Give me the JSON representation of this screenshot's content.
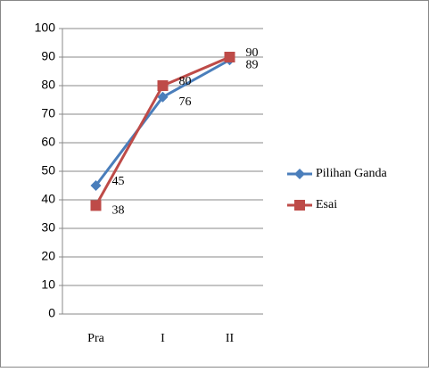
{
  "chart_data": {
    "type": "line",
    "categories": [
      "Pra",
      "I",
      "II"
    ],
    "series": [
      {
        "name": "Pilihan Ganda",
        "color": "#4a7ebb",
        "marker": "diamond",
        "values": [
          45,
          76,
          89
        ]
      },
      {
        "name": "Esai",
        "color": "#be4b48",
        "marker": "square",
        "values": [
          38,
          80,
          90
        ]
      }
    ],
    "ylim": [
      0,
      100
    ],
    "yticks": [
      0,
      10,
      20,
      30,
      40,
      50,
      60,
      70,
      80,
      90,
      100
    ],
    "grid": true,
    "legend": "right"
  }
}
